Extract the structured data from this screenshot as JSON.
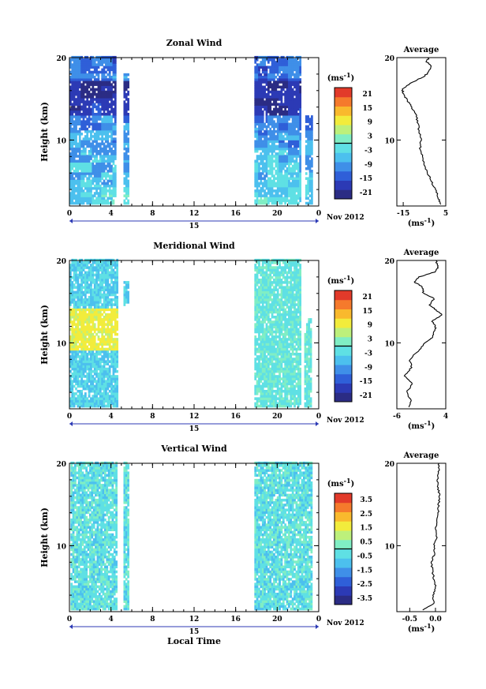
{
  "chart_data": [
    {
      "type": "heatmap",
      "title": "Zonal Wind",
      "xlabel": "",
      "ylabel": "Height (km)",
      "xlim": [
        0,
        24
      ],
      "ylim": [
        2,
        20
      ],
      "xticks": [
        "0",
        "4",
        "8",
        "12",
        "16",
        "20",
        "0"
      ],
      "yticks": [
        "10",
        "20"
      ],
      "date_label": "15",
      "date_suffix": "Nov 2012",
      "colorbar": {
        "unit": "(ms",
        "unit_exp": "-1",
        "ticks": [
          "21",
          "15",
          "9",
          "3",
          "-3",
          "-9",
          "-15",
          "-21"
        ],
        "levels": [
          -24,
          24
        ]
      },
      "data_blocks": [
        {
          "x0": 0,
          "x1": 4.5,
          "y0": 2.2,
          "y1": 20
        },
        {
          "x0": 5.2,
          "x1": 5.6,
          "y0": 2.2,
          "y1": 18
        },
        {
          "x0": 17.8,
          "x1": 22.3,
          "y0": 2.2,
          "y1": 20
        },
        {
          "x0": 22.7,
          "x1": 23.3,
          "y0": 2.2,
          "y1": 13
        }
      ],
      "average_profile": {
        "title": "Average",
        "xlabel": "(ms",
        "xlabel_exp": "-1",
        "xlim": [
          -18,
          5
        ],
        "xticks": [
          "-15",
          "5"
        ],
        "yticks": [
          "10",
          "20"
        ],
        "height": [
          2.2,
          3,
          4,
          5,
          6,
          7,
          8,
          9,
          10,
          11,
          12,
          13,
          14,
          14.8,
          15.6,
          16.2,
          17,
          17.6,
          18.2,
          19,
          19.5,
          20
        ],
        "values": [
          2.4,
          1.6,
          0,
          -1.8,
          -3.5,
          -5,
          -6,
          -7,
          -6.7,
          -7.5,
          -8,
          -9,
          -11,
          -13,
          -15,
          -15.5,
          -11,
          -6,
          -3,
          -1.5,
          -4,
          -3
        ]
      }
    },
    {
      "type": "heatmap",
      "title": "Meridional Wind",
      "xlabel": "",
      "ylabel": "Height (km)",
      "xlim": [
        0,
        24
      ],
      "ylim": [
        2,
        20
      ],
      "xticks": [
        "0",
        "4",
        "8",
        "12",
        "16",
        "20",
        "0"
      ],
      "yticks": [
        "10",
        "20"
      ],
      "date_label": "15",
      "date_suffix": "Nov 2012",
      "colorbar": {
        "unit": "(ms",
        "unit_exp": "-1",
        "ticks": [
          "21",
          "15",
          "9",
          "3",
          "-3",
          "-9",
          "-15",
          "-21"
        ],
        "levels": [
          -24,
          24
        ]
      },
      "data_blocks": [
        {
          "x0": 0,
          "x1": 4.6,
          "y0": 2.2,
          "y1": 20
        },
        {
          "x0": 5.2,
          "x1": 5.6,
          "y0": 14.5,
          "y1": 17.5
        },
        {
          "x0": 17.8,
          "x1": 22.3,
          "y0": 2.2,
          "y1": 20
        },
        {
          "x0": 22.6,
          "x1": 23.3,
          "y0": 2.2,
          "y1": 13
        }
      ],
      "average_profile": {
        "title": "Average",
        "xlabel": "(ms",
        "xlabel_exp": "-1",
        "xlim": [
          -6,
          4
        ],
        "xticks": [
          "-6",
          "4"
        ],
        "yticks": [
          "10",
          "20"
        ],
        "height": [
          2.2,
          3,
          4,
          5,
          6,
          7,
          8,
          9,
          10,
          10.6,
          11.2,
          11.8,
          12.6,
          13.4,
          14,
          14.6,
          15.4,
          16,
          16.8,
          17.4,
          18,
          18.6,
          19.2,
          20
        ],
        "values": [
          -3.6,
          -3.2,
          -4,
          -2.8,
          -4.5,
          -3,
          -3.4,
          -1.6,
          -0.4,
          1.2,
          1.5,
          2,
          1.2,
          3.2,
          2,
          0.8,
          1.6,
          -0.6,
          -0.8,
          -2.5,
          -1.5,
          1.8,
          2.4,
          2
        ]
      }
    },
    {
      "type": "heatmap",
      "title": "Vertical Wind",
      "xlabel": "Local Time",
      "ylabel": "Height (km)",
      "xlim": [
        0,
        24
      ],
      "ylim": [
        2,
        20
      ],
      "xticks": [
        "0",
        "4",
        "8",
        "12",
        "16",
        "20",
        "0"
      ],
      "yticks": [
        "10",
        "20"
      ],
      "date_label": "15",
      "date_suffix": "Nov 2012",
      "colorbar": {
        "unit": "(ms",
        "unit_exp": "-1",
        "ticks": [
          "3.5",
          "2.5",
          "1.5",
          "0.5",
          "-0.5",
          "-1.5",
          "-2.5",
          "-3.5"
        ],
        "levels": [
          -4,
          4
        ]
      },
      "data_blocks": [
        {
          "x0": 0.1,
          "x1": 4.5,
          "y0": 2.2,
          "y1": 20
        },
        {
          "x0": 5.2,
          "x1": 5.6,
          "y0": 2.2,
          "y1": 20
        },
        {
          "x0": 17.8,
          "x1": 23.3,
          "y0": 2.2,
          "y1": 20
        }
      ],
      "average_profile": {
        "title": "Average",
        "xlabel": "(ms",
        "xlabel_exp": "-1",
        "xlim": [
          -0.75,
          0.2
        ],
        "xticks": [
          "-0.5",
          "0.0"
        ],
        "yticks": [
          "10",
          "20"
        ],
        "height": [
          2.2,
          3,
          4,
          5,
          6,
          7,
          8,
          9,
          10,
          11,
          12,
          13,
          14,
          15,
          16,
          17,
          18,
          19,
          20
        ],
        "values": [
          -0.25,
          -0.02,
          -0.05,
          0.0,
          -0.03,
          -0.06,
          -0.08,
          -0.02,
          -0.03,
          0.02,
          0.0,
          0.02,
          0.05,
          0.06,
          0.08,
          0.05,
          0.04,
          0.06,
          0.07
        ]
      }
    }
  ]
}
